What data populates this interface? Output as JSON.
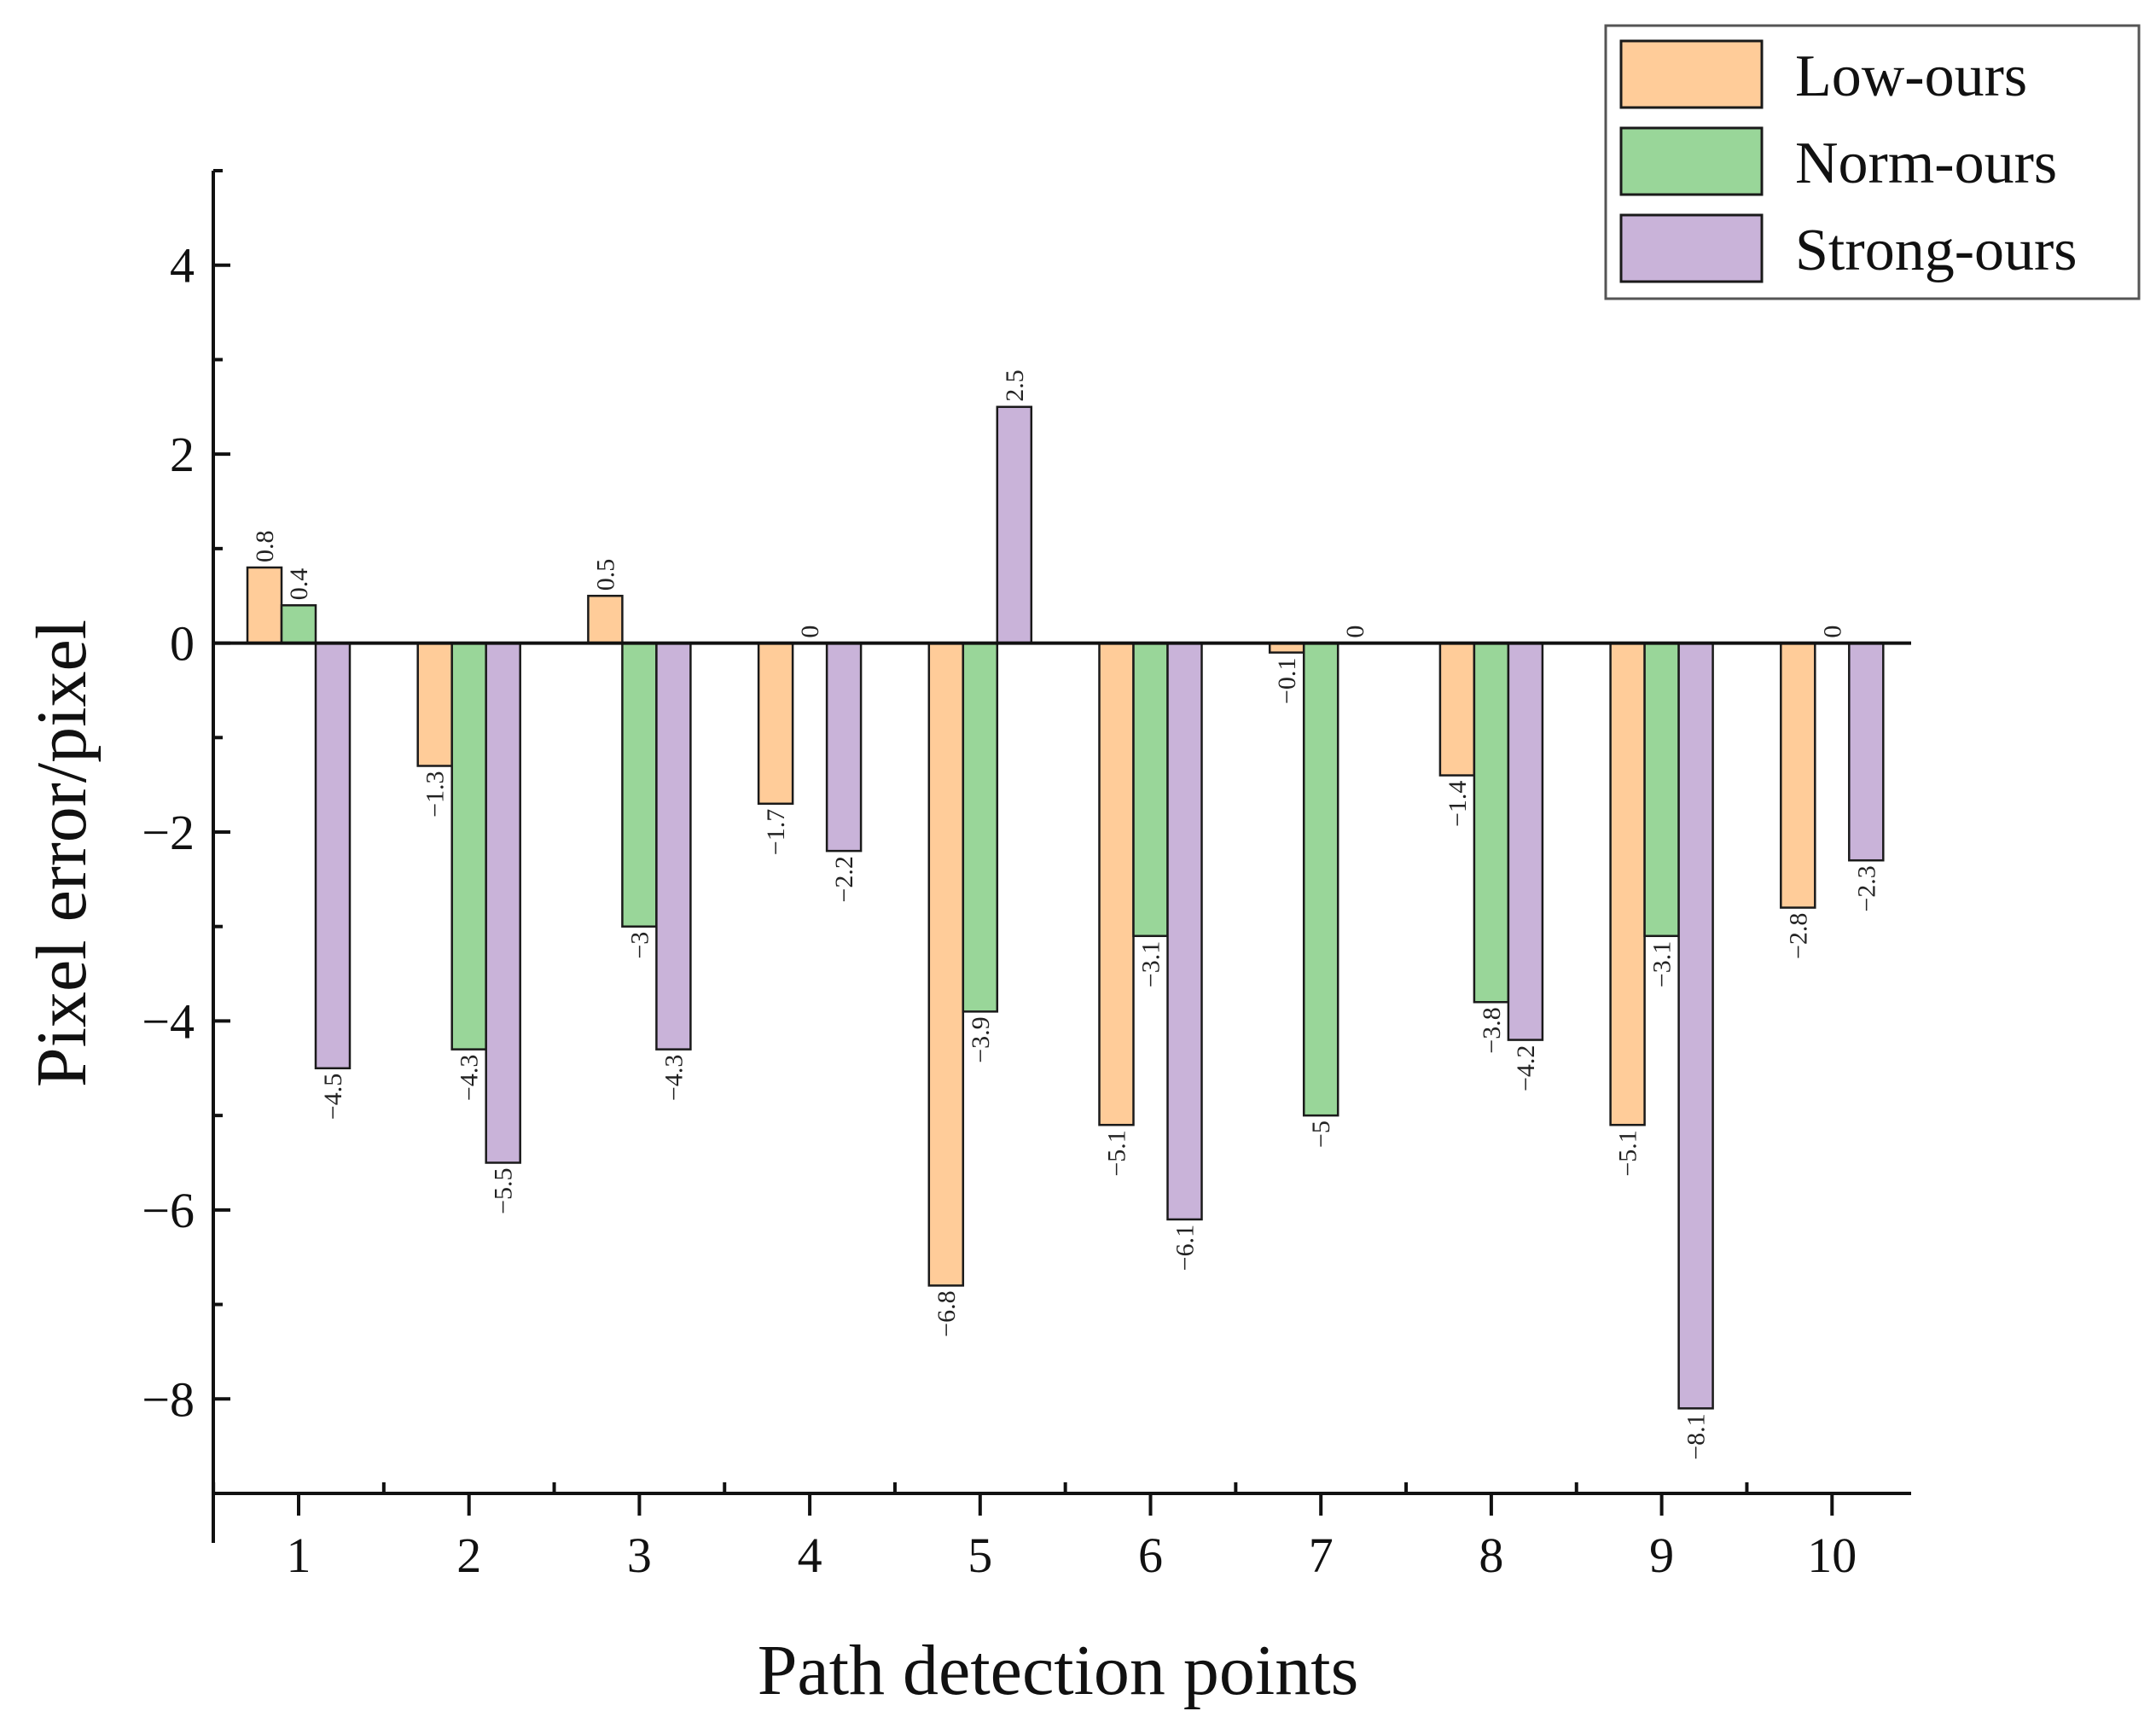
{
  "chart_data": {
    "type": "bar",
    "title": "",
    "xlabel": "Path detection points",
    "ylabel": "Pixel error/pixel",
    "categories": [
      "1",
      "2",
      "3",
      "4",
      "5",
      "6",
      "7",
      "8",
      "9",
      "10"
    ],
    "ylim": [
      -9,
      5
    ],
    "yticks": [
      -8,
      -6,
      -4,
      -2,
      0,
      2,
      4
    ],
    "ytick_labels": [
      "−8",
      "−6",
      "−4",
      "−2",
      "0",
      "2",
      "4"
    ],
    "legend_position": "top-right",
    "series": [
      {
        "name": "Low-ours",
        "color": "#FFCC99",
        "values": [
          0.8,
          -1.3,
          0.5,
          -1.7,
          -6.8,
          -5.1,
          -0.1,
          -1.4,
          -5.1,
          -2.8
        ],
        "labels": [
          "0.8",
          "−1.3",
          "0.5",
          "−1.7",
          "−6.8",
          "−5.1",
          "−0.1",
          "−1.4",
          "−5.1",
          "−2.8"
        ]
      },
      {
        "name": "Norm-ours",
        "color": "#99D699",
        "values": [
          0.4,
          -4.3,
          -3,
          0,
          -3.9,
          -3.1,
          -5,
          -3.8,
          -3.1,
          0
        ],
        "labels": [
          "0.4",
          "−4.3",
          "−3",
          "0",
          "−3.9",
          "−3.1",
          "−5",
          "−3.8",
          "−3.1",
          "0"
        ]
      },
      {
        "name": "Strong-ours",
        "color": "#C9B3D9",
        "values": [
          -4.5,
          -5.5,
          -4.3,
          -2.2,
          2.5,
          -6.1,
          0,
          -4.2,
          -8.1,
          -2.3
        ],
        "labels": [
          "−4.5",
          "−5.5",
          "−4.3",
          "−2.2",
          "2.5",
          "−6.1",
          "0",
          "−4.2",
          "−8.1",
          "−2.3"
        ]
      }
    ]
  }
}
